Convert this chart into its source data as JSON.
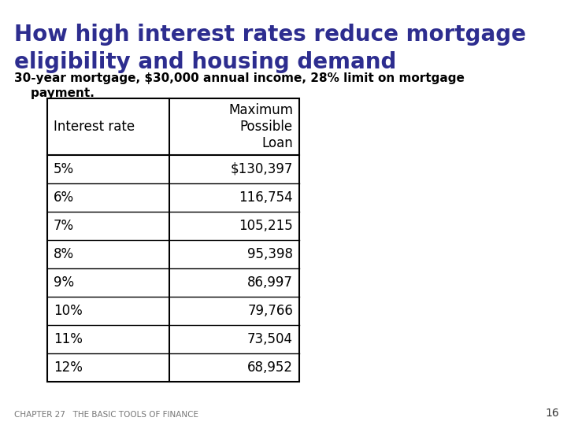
{
  "title_line1": "How high interest rates reduce mortgage",
  "title_line2": "eligibility and housing demand",
  "subtitle_line1": "30-year mortgage, $30,000 annual income, 28% limit on mortgage",
  "subtitle_line2": "    payment.",
  "col_headers": [
    "Interest rate",
    "Maximum\nPossible\nLoan"
  ],
  "rows": [
    [
      "5%",
      "$130,397"
    ],
    [
      "6%",
      "116,754"
    ],
    [
      "7%",
      "105,215"
    ],
    [
      "8%",
      "95,398"
    ],
    [
      "9%",
      "86,997"
    ],
    [
      "10%",
      "79,766"
    ],
    [
      "11%",
      "73,504"
    ],
    [
      "12%",
      "68,952"
    ]
  ],
  "title_color": "#2d2d8f",
  "subtitle_color": "#000000",
  "table_text_color": "#000000",
  "bg_color": "#ffffff",
  "footer_text": "CHAPTER 27   THE BASIC TOOLS OF FINANCE",
  "footer_page": "16",
  "title_fontsize": 20,
  "subtitle_fontsize": 11,
  "table_fontsize": 12
}
